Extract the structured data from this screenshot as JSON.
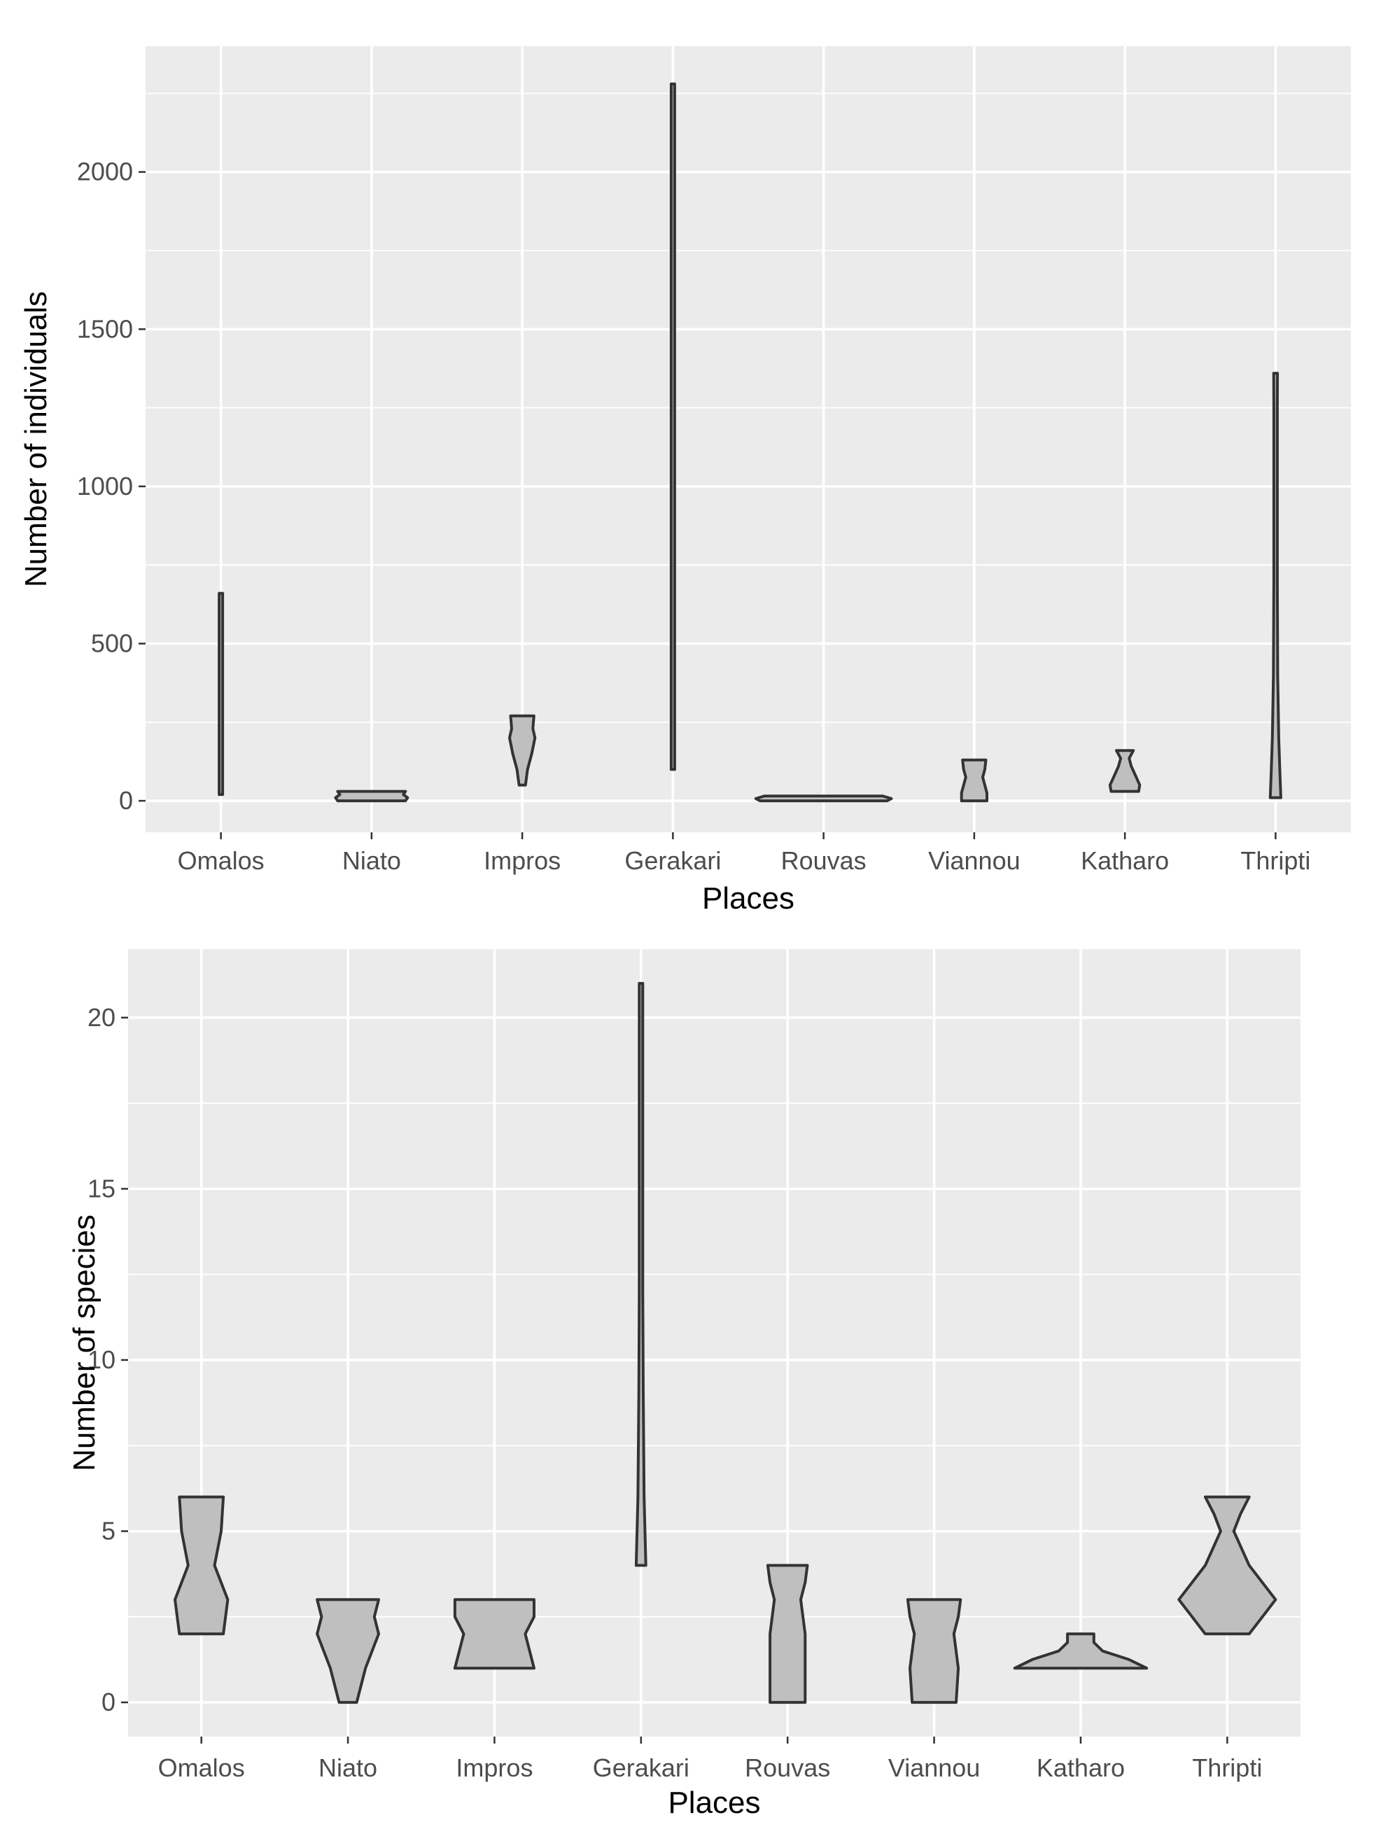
{
  "colors": {
    "panel": "#ebebeb",
    "grid": "#ffffff",
    "violin_fill": "#bfbfbf",
    "violin_stroke": "#333333"
  },
  "chart_data": [
    {
      "type": "violin",
      "title": "",
      "xlabel": "Places",
      "ylabel": "Number of individuals",
      "ylim": [
        -100,
        2400
      ],
      "yticks": [
        0,
        500,
        1000,
        1500,
        2000
      ],
      "categories": [
        "Omalos",
        "Niato",
        "Impros",
        "Gerakari",
        "Rouvas",
        "Viannou",
        "Katharo",
        "Thripti"
      ],
      "series": [
        {
          "name": "Omalos",
          "min": 20,
          "max": 660,
          "profile": [
            [
              20,
              0.6
            ],
            [
              60,
              0.8
            ],
            [
              150,
              0.55
            ],
            [
              300,
              0.5
            ],
            [
              450,
              0.45
            ],
            [
              600,
              0.55
            ],
            [
              660,
              0.8
            ]
          ]
        },
        {
          "name": "Niato",
          "min": 0,
          "max": 30,
          "profile": [
            [
              0,
              16
            ],
            [
              10,
              17
            ],
            [
              20,
              15
            ],
            [
              30,
              16
            ]
          ]
        },
        {
          "name": "Impros",
          "min": 50,
          "max": 270,
          "profile": [
            [
              50,
              1.5
            ],
            [
              100,
              2.5
            ],
            [
              150,
              4.5
            ],
            [
              200,
              6
            ],
            [
              230,
              5
            ],
            [
              270,
              5.5
            ]
          ]
        },
        {
          "name": "Gerakari",
          "min": 100,
          "max": 2280,
          "profile": [
            [
              100,
              0.45
            ],
            [
              600,
              0.4
            ],
            [
              1200,
              0.45
            ],
            [
              1800,
              0.4
            ],
            [
              2280,
              0.4
            ]
          ]
        },
        {
          "name": "Rouvas",
          "min": 0,
          "max": 15,
          "profile": [
            [
              0,
              30
            ],
            [
              7,
              32
            ],
            [
              15,
              28
            ]
          ]
        },
        {
          "name": "Viannou",
          "min": 0,
          "max": 130,
          "profile": [
            [
              0,
              6
            ],
            [
              25,
              6
            ],
            [
              50,
              5
            ],
            [
              75,
              4
            ],
            [
              100,
              5
            ],
            [
              130,
              5.5
            ]
          ]
        },
        {
          "name": "Katharo",
          "min": 30,
          "max": 160,
          "profile": [
            [
              30,
              6.5
            ],
            [
              50,
              7
            ],
            [
              80,
              5
            ],
            [
              110,
              3
            ],
            [
              135,
              2
            ],
            [
              160,
              4
            ]
          ]
        },
        {
          "name": "Thripti",
          "min": 10,
          "max": 1360,
          "profile": [
            [
              10,
              2.5
            ],
            [
              100,
              2
            ],
            [
              200,
              1.5
            ],
            [
              400,
              1
            ],
            [
              700,
              0.5
            ],
            [
              1100,
              0.4
            ],
            [
              1250,
              0.7
            ],
            [
              1360,
              0.9
            ]
          ]
        }
      ]
    },
    {
      "type": "violin",
      "title": "",
      "xlabel": "Places",
      "ylabel": "Number of species",
      "ylim": [
        -1,
        22
      ],
      "yticks": [
        0,
        5,
        10,
        15,
        20
      ],
      "categories": [
        "Omalos",
        "Niato",
        "Impros",
        "Gerakari",
        "Rouvas",
        "Viannou",
        "Katharo",
        "Thripti"
      ],
      "series": [
        {
          "name": "Omalos",
          "min": 2,
          "max": 6,
          "profile": [
            [
              2,
              5
            ],
            [
              3,
              6
            ],
            [
              4,
              3
            ],
            [
              5,
              4.5
            ],
            [
              6,
              5
            ]
          ]
        },
        {
          "name": "Niato",
          "min": 0,
          "max": 3,
          "profile": [
            [
              0,
              2
            ],
            [
              1,
              4
            ],
            [
              2,
              7
            ],
            [
              2.5,
              6
            ],
            [
              3,
              7
            ]
          ]
        },
        {
          "name": "Impros",
          "min": 1,
          "max": 3,
          "profile": [
            [
              1,
              9
            ],
            [
              1.5,
              8
            ],
            [
              2,
              7
            ],
            [
              2.5,
              9
            ],
            [
              3,
              9
            ]
          ]
        },
        {
          "name": "Gerakari",
          "min": 4,
          "max": 21,
          "profile": [
            [
              4,
              1.1
            ],
            [
              6,
              0.7
            ],
            [
              9,
              0.5
            ],
            [
              12,
              0.35
            ],
            [
              15,
              0.25
            ],
            [
              18,
              0.2
            ],
            [
              21,
              0.2
            ]
          ]
        },
        {
          "name": "Rouvas",
          "min": 0,
          "max": 4,
          "profile": [
            [
              0,
              4
            ],
            [
              1,
              4
            ],
            [
              2,
              4
            ],
            [
              3,
              3
            ],
            [
              3.5,
              4
            ],
            [
              4,
              4.5
            ]
          ]
        },
        {
          "name": "Viannou",
          "min": 0,
          "max": 3,
          "profile": [
            [
              0,
              5
            ],
            [
              1,
              5.5
            ],
            [
              2,
              4.5
            ],
            [
              2.5,
              5.5
            ],
            [
              3,
              6
            ]
          ]
        },
        {
          "name": "Katharo",
          "min": 1,
          "max": 2,
          "profile": [
            [
              1,
              15
            ],
            [
              1.25,
              11
            ],
            [
              1.5,
              5
            ],
            [
              1.75,
              3
            ],
            [
              2,
              3
            ]
          ]
        },
        {
          "name": "Thripti",
          "min": 2,
          "max": 6,
          "profile": [
            [
              2,
              5
            ],
            [
              2.5,
              8
            ],
            [
              3,
              11
            ],
            [
              4,
              5
            ],
            [
              5,
              1.5
            ],
            [
              5.5,
              3
            ],
            [
              6,
              5
            ]
          ]
        }
      ]
    }
  ]
}
